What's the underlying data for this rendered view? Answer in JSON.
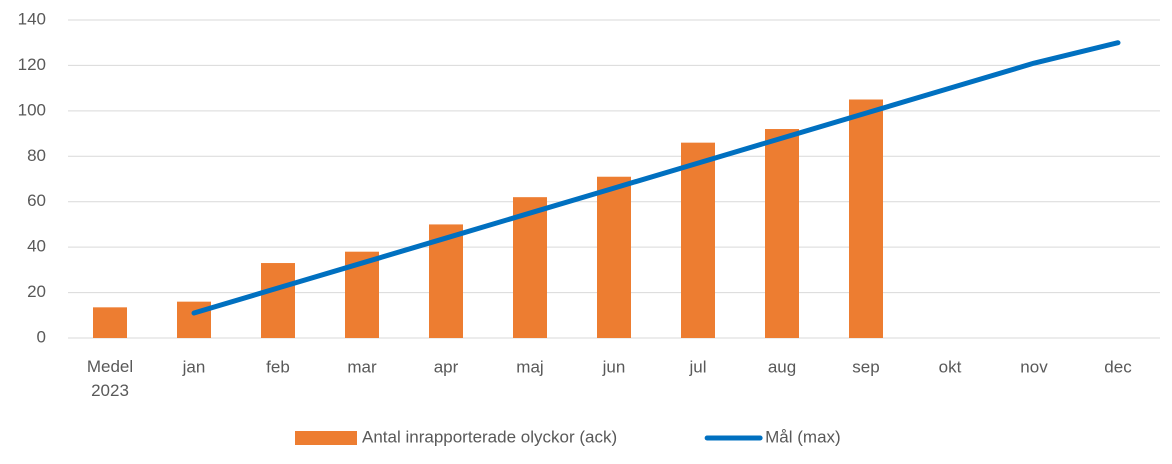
{
  "chart_data": {
    "type": "bar",
    "categories": [
      "Medel 2023",
      "jan",
      "feb",
      "mar",
      "apr",
      "maj",
      "jun",
      "jul",
      "aug",
      "sep",
      "okt",
      "nov",
      "dec"
    ],
    "series": [
      {
        "name": "Antal inrapporterade olyckor (ack)",
        "type": "bar",
        "color": "#ed7d31",
        "values": [
          13.5,
          16,
          33,
          38,
          50,
          62,
          71,
          86,
          92,
          105,
          null,
          null,
          null
        ]
      },
      {
        "name": "Mål (max)",
        "type": "line",
        "color": "#0070c0",
        "values": [
          null,
          11,
          22,
          33,
          44,
          55,
          66,
          77,
          88,
          99,
          110,
          121,
          130
        ]
      }
    ],
    "ylim": [
      0,
      140
    ],
    "yticks": [
      0,
      20,
      40,
      60,
      80,
      100,
      120,
      140
    ],
    "grid": true,
    "legend": "bottom"
  }
}
